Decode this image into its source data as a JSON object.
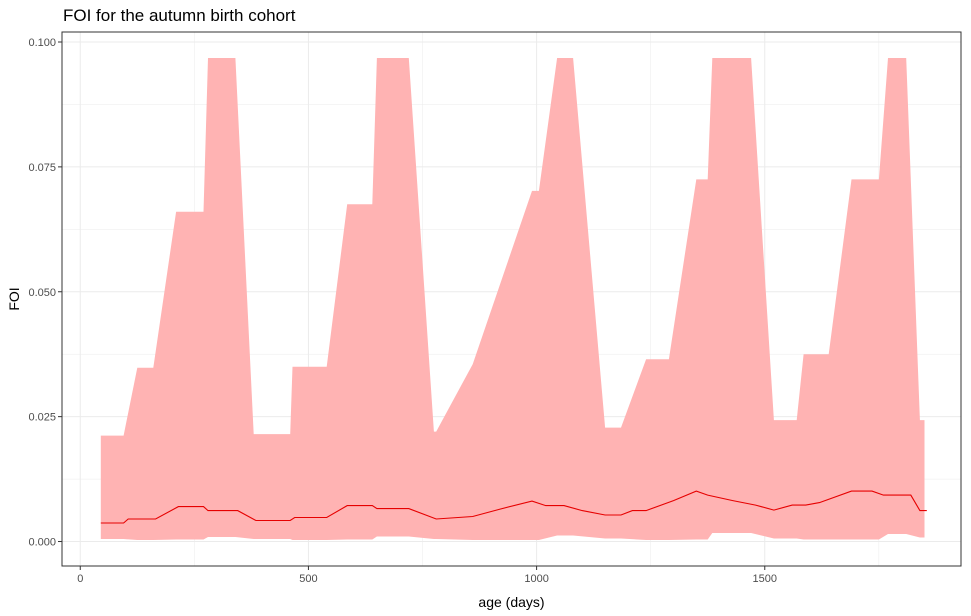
{
  "chart_data": {
    "type": "area",
    "title": "FOI for the autumn birth cohort",
    "xlabel": "age (days)",
    "ylabel": "FOI",
    "xlim": [
      -40,
      1930
    ],
    "ylim": [
      -0.0049,
      0.102
    ],
    "x_ticks": [
      0,
      500,
      1000,
      1500
    ],
    "x_tick_labels": [
      "0",
      "500",
      "1000",
      "1500"
    ],
    "y_ticks": [
      0.0,
      0.025,
      0.05,
      0.075,
      0.1
    ],
    "y_tick_labels": [
      "0.000",
      "0.025",
      "0.050",
      "0.075",
      "0.100"
    ],
    "grid": true,
    "colors": {
      "ribbon": "#ffb3b3",
      "line": "#e60000",
      "grid": "#ebebeb",
      "border": "#333333"
    },
    "series": [
      {
        "kind": "ribbon",
        "x": [
          45,
          90,
          95,
          125,
          160,
          210,
          270,
          280,
          340,
          380,
          460,
          465,
          540,
          585,
          640,
          650,
          700,
          720,
          775,
          780,
          860,
          990,
          1005,
          1045,
          1080,
          1150,
          1185,
          1240,
          1290,
          1350,
          1375,
          1385,
          1400,
          1430,
          1470,
          1520,
          1570,
          1585,
          1620,
          1640,
          1690,
          1750,
          1770,
          1810,
          1840,
          1850
        ],
        "upper": [
          0.0212,
          0.0212,
          0.0212,
          0.0348,
          0.0348,
          0.066,
          0.066,
          0.0968,
          0.0968,
          0.0215,
          0.0215,
          0.035,
          0.035,
          0.0675,
          0.0675,
          0.0968,
          0.0968,
          0.0968,
          0.022,
          0.022,
          0.0355,
          0.0702,
          0.0702,
          0.0968,
          0.0968,
          0.0228,
          0.0228,
          0.0365,
          0.0365,
          0.0725,
          0.0725,
          0.0968,
          0.0968,
          0.0968,
          0.0968,
          0.0243,
          0.0243,
          0.0375,
          0.0375,
          0.0375,
          0.0725,
          0.0725,
          0.0968,
          0.0968,
          0.0243,
          0.0243
        ],
        "lower": [
          0.0005,
          0.0005,
          0.0005,
          0.0003,
          0.0003,
          0.0004,
          0.0004,
          0.0009,
          0.0009,
          0.0005,
          0.0005,
          0.0003,
          0.0003,
          0.0004,
          0.0004,
          0.001,
          0.001,
          0.001,
          0.0005,
          0.0005,
          0.0003,
          0.0003,
          0.0003,
          0.0012,
          0.0012,
          0.0006,
          0.0006,
          0.0003,
          0.0003,
          0.0004,
          0.0004,
          0.0017,
          0.0017,
          0.0017,
          0.0017,
          0.0006,
          0.0006,
          0.0004,
          0.0004,
          0.0004,
          0.0004,
          0.0004,
          0.0015,
          0.0015,
          0.0008,
          0.0008
        ]
      },
      {
        "kind": "line",
        "x": [
          45,
          95,
          105,
          165,
          215,
          270,
          280,
          345,
          385,
          460,
          470,
          540,
          585,
          640,
          650,
          720,
          780,
          860,
          920,
          990,
          1020,
          1060,
          1100,
          1150,
          1185,
          1210,
          1240,
          1300,
          1350,
          1375,
          1430,
          1480,
          1520,
          1560,
          1590,
          1620,
          1690,
          1735,
          1760,
          1820,
          1840,
          1855
        ],
        "y": [
          0.0037,
          0.0037,
          0.0045,
          0.0045,
          0.007,
          0.007,
          0.0062,
          0.0062,
          0.0042,
          0.0042,
          0.0048,
          0.0048,
          0.0072,
          0.0072,
          0.0066,
          0.0066,
          0.0045,
          0.005,
          0.0065,
          0.0081,
          0.0072,
          0.0072,
          0.0062,
          0.0053,
          0.0053,
          0.0062,
          0.0062,
          0.0082,
          0.0101,
          0.0093,
          0.0082,
          0.0073,
          0.0063,
          0.0073,
          0.0073,
          0.0078,
          0.0101,
          0.0101,
          0.0093,
          0.0093,
          0.0062,
          0.0062
        ]
      }
    ]
  }
}
